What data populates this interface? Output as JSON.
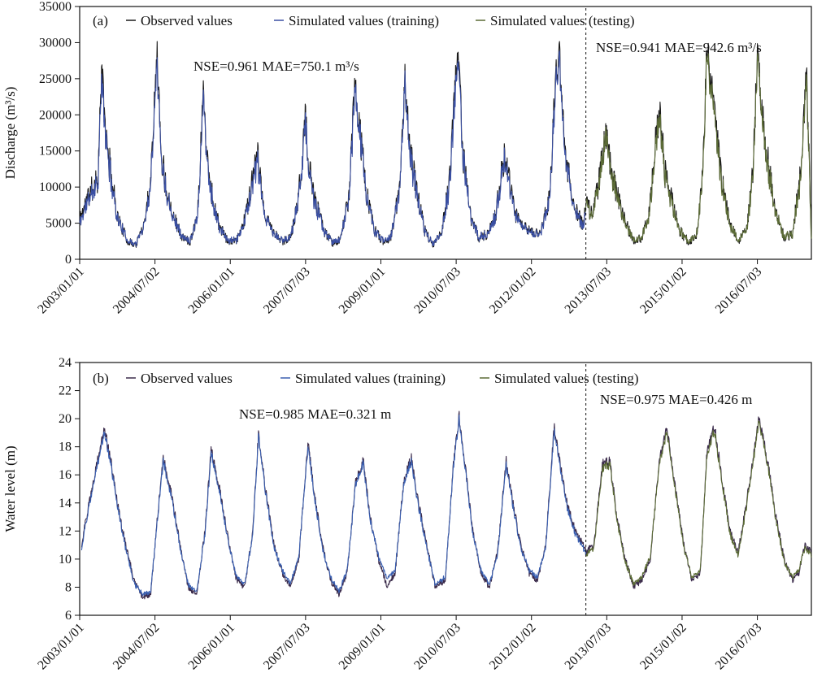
{
  "chart_data": [
    {
      "type": "line",
      "panel_label": "(a)",
      "ylabel": "Discharge (m³/s)",
      "ylim": [
        0,
        35000
      ],
      "y_ticks": [
        "0",
        "5000",
        "10000",
        "15000",
        "20000",
        "25000",
        "30000",
        "35000"
      ],
      "x_tick_labels": [
        "2003/01/01",
        "2004/07/02",
        "2006/01/01",
        "2007/07/03",
        "2009/01/01",
        "2010/07/03",
        "2012/01/02",
        "2013/07/03",
        "2015/01/02",
        "2016/07/03"
      ],
      "x_range": [
        "2003/01/01",
        "2017/07/31"
      ],
      "split_date": "2013/02/01",
      "legend": [
        "Observed values",
        "Simulated values (training)",
        "Simulated values (testing)"
      ],
      "annotations": {
        "training_stats": "NSE=0.961 MAE=750.1  m³/s",
        "testing_stats": "NSE=0.941 MAE=942.6 m³/s"
      },
      "colors": {
        "observed": "#1a1a1a",
        "training": "#3a4fa3",
        "testing": "#5b6b36"
      },
      "series": [
        {
          "name": "Observed values",
          "role": "observed"
        },
        {
          "name": "Simulated values (training)",
          "role": "training"
        },
        {
          "name": "Simulated values (testing)",
          "role": "testing"
        }
      ],
      "keypoints": {
        "x": [
          "2003/01/01",
          "2003/03/01",
          "2003/05/15",
          "2003/06/10",
          "2003/07/10",
          "2003/08/15",
          "2003/10/01",
          "2003/12/15",
          "2004/02/15",
          "2004/04/15",
          "2004/06/01",
          "2004/07/15",
          "2004/08/15",
          "2004/09/20",
          "2004/11/15",
          "2005/01/15",
          "2005/03/15",
          "2005/05/10",
          "2005/06/20",
          "2005/07/15",
          "2005/09/01",
          "2005/10/15",
          "2005/12/15",
          "2006/02/15",
          "2006/04/15",
          "2006/06/15",
          "2006/07/20",
          "2006/09/01",
          "2006/11/15",
          "2007/01/15",
          "2007/03/15",
          "2007/05/10",
          "2007/07/01",
          "2007/07/25",
          "2007/09/01",
          "2007/11/15",
          "2008/01/15",
          "2008/03/15",
          "2008/05/15",
          "2008/06/25",
          "2008/08/10",
          "2008/09/20",
          "2008/11/15",
          "2009/01/15",
          "2009/03/15",
          "2009/05/15",
          "2009/06/25",
          "2009/08/05",
          "2009/09/20",
          "2009/11/15",
          "2010/01/15",
          "2010/03/15",
          "2010/05/15",
          "2010/07/10",
          "2010/07/25",
          "2010/08/20",
          "2010/10/15",
          "2010/12/15",
          "2011/02/15",
          "2011/04/15",
          "2011/06/15",
          "2011/07/20",
          "2011/09/01",
          "2011/11/15",
          "2012/01/15",
          "2012/03/15",
          "2012/05/15",
          "2012/06/25",
          "2012/07/25",
          "2012/09/01",
          "2012/11/15",
          "2013/01/15",
          "2013/02/01",
          "2013/03/15",
          "2013/05/15",
          "2013/06/25",
          "2013/08/01",
          "2013/09/15",
          "2013/11/15",
          "2014/01/15",
          "2014/03/15",
          "2014/05/10",
          "2014/06/20",
          "2014/07/20",
          "2014/09/01",
          "2014/10/20",
          "2014/12/15",
          "2015/02/15",
          "2015/04/15",
          "2015/06/01",
          "2015/07/01",
          "2015/08/15",
          "2015/10/15",
          "2015/12/15",
          "2016/02/15",
          "2016/04/15",
          "2016/06/01",
          "2016/07/05",
          "2016/08/10",
          "2016/09/20",
          "2016/11/20",
          "2017/01/15",
          "2017/03/15",
          "2017/05/15",
          "2017/06/25",
          "2017/07/31"
        ],
        "observed": [
          5500,
          8500,
          11500,
          26500,
          17000,
          12000,
          6000,
          2500,
          2000,
          5000,
          11000,
          29500,
          15000,
          10000,
          6000,
          3000,
          2500,
          6500,
          24000,
          14000,
          7500,
          4500,
          2500,
          2500,
          5500,
          11000,
          14000,
          6500,
          3500,
          2500,
          3000,
          8000,
          19500,
          13000,
          8500,
          4000,
          2200,
          2800,
          9000,
          24000,
          16000,
          9000,
          4000,
          2500,
          3000,
          9500,
          25000,
          14000,
          9500,
          4000,
          2000,
          3500,
          10500,
          28500,
          26000,
          15000,
          6000,
          3000,
          3500,
          6000,
          14000,
          11000,
          6500,
          4500,
          3500,
          4000,
          9000,
          25000,
          28000,
          14000,
          7000,
          4500,
          8500,
          6000,
          11500,
          17500,
          13000,
          9000,
          5000,
          2500,
          3000,
          6500,
          16000,
          20500,
          12000,
          8000,
          4000,
          2500,
          3000,
          11000,
          29500,
          22000,
          11000,
          5000,
          2500,
          4000,
          12000,
          29000,
          19500,
          13000,
          6000,
          3000,
          3500,
          12000,
          26000,
          2500
        ],
        "simulated": [
          5000,
          8000,
          11000,
          25000,
          16500,
          11500,
          5800,
          2600,
          2100,
          4800,
          10500,
          28000,
          14500,
          9500,
          5800,
          3100,
          2600,
          6200,
          23000,
          13500,
          7200,
          4300,
          2600,
          2600,
          5300,
          10500,
          13500,
          6300,
          3400,
          2600,
          3100,
          7700,
          19000,
          12500,
          8200,
          3900,
          2300,
          2900,
          8700,
          23500,
          15500,
          8700,
          3900,
          2600,
          3100,
          9200,
          24500,
          13500,
          9200,
          3900,
          2100,
          3400,
          10000,
          27500,
          25000,
          14500,
          5800,
          3100,
          3400,
          5800,
          13500,
          10500,
          6300,
          4300,
          3400,
          3900,
          8700,
          24000,
          27000,
          13500,
          6800,
          4300,
          8000,
          5800,
          11000,
          17000,
          12500,
          8700,
          4800,
          2600,
          3100,
          6200,
          15500,
          20000,
          11500,
          7700,
          3900,
          2600,
          3100,
          10500,
          28500,
          21000,
          10500,
          4800,
          2600,
          3900,
          11500,
          28000,
          19000,
          12500,
          5800,
          3100,
          3400,
          11500,
          25000,
          2600
        ]
      }
    },
    {
      "type": "line",
      "panel_label": "(b)",
      "ylabel": "Water level (m)",
      "ylim": [
        6,
        24
      ],
      "y_ticks": [
        "6",
        "8",
        "10",
        "12",
        "14",
        "16",
        "18",
        "20",
        "22",
        "24"
      ],
      "x_tick_labels": [
        "2003/01/01",
        "2004/07/02",
        "2006/01/01",
        "2007/07/03",
        "2009/01/01",
        "2010/07/03",
        "2012/01/02",
        "2013/07/03",
        "2015/01/02",
        "2016/07/03"
      ],
      "x_range": [
        "2003/01/01",
        "2017/07/31"
      ],
      "split_date": "2013/02/01",
      "legend": [
        "Observed values",
        "Simulated values (training)",
        "Simulated values (testing)"
      ],
      "annotations": {
        "training_stats": "NSE=0.985 MAE=0.321 m",
        "testing_stats": "NSE=0.975 MAE=0.426 m"
      },
      "colors": {
        "observed": "#3a2a4a",
        "training": "#3a5fb0",
        "testing": "#5b6b36"
      },
      "series": [
        {
          "name": "Observed values",
          "role": "observed"
        },
        {
          "name": "Simulated values (training)",
          "role": "training"
        },
        {
          "name": "Simulated values (testing)",
          "role": "testing"
        }
      ],
      "keypoints": {
        "x": [
          "2003/01/15",
          "2003/03/01",
          "2003/05/01",
          "2003/07/01",
          "2003/08/15",
          "2003/10/01",
          "2003/12/01",
          "2004/02/01",
          "2004/04/01",
          "2004/06/01",
          "2004/07/20",
          "2004/09/01",
          "2004/11/01",
          "2005/01/01",
          "2005/03/01",
          "2005/05/01",
          "2005/07/01",
          "2005/08/15",
          "2005/10/15",
          "2005/12/15",
          "2006/02/15",
          "2006/04/15",
          "2006/06/15",
          "2006/07/25",
          "2006/09/15",
          "2006/11/15",
          "2007/01/15",
          "2007/03/15",
          "2007/05/15",
          "2007/07/20",
          "2007/09/01",
          "2007/11/01",
          "2008/01/01",
          "2008/03/01",
          "2008/05/01",
          "2008/07/01",
          "2008/08/25",
          "2008/10/15",
          "2008/12/15",
          "2009/02/15",
          "2009/04/15",
          "2009/06/15",
          "2009/08/10",
          "2009/10/01",
          "2009/12/01",
          "2010/02/01",
          "2010/04/15",
          "2010/06/15",
          "2010/07/25",
          "2010/09/01",
          "2010/11/01",
          "2011/01/01",
          "2011/03/01",
          "2011/05/01",
          "2011/07/01",
          "2011/08/20",
          "2011/10/15",
          "2011/12/15",
          "2012/02/15",
          "2012/04/15",
          "2012/06/15",
          "2012/07/25",
          "2012/09/15",
          "2012/11/15",
          "2013/01/15",
          "2013/02/01",
          "2013/04/01",
          "2013/06/01",
          "2013/07/25",
          "2013/09/15",
          "2013/11/15",
          "2014/01/15",
          "2014/03/15",
          "2014/05/15",
          "2014/07/20",
          "2014/09/15",
          "2014/11/15",
          "2015/01/15",
          "2015/03/15",
          "2015/05/15",
          "2015/07/01",
          "2015/08/25",
          "2015/10/15",
          "2015/12/15",
          "2016/02/15",
          "2016/04/15",
          "2016/06/15",
          "2016/07/15",
          "2016/09/15",
          "2016/11/15",
          "2017/01/15",
          "2017/03/15",
          "2017/05/01",
          "2017/06/15",
          "2017/07/31"
        ],
        "observed": [
          11,
          13.5,
          16.5,
          19.3,
          17,
          14,
          11,
          8.5,
          7.3,
          7.5,
          13,
          17.2,
          14.5,
          11,
          8,
          7.5,
          12,
          17.8,
          15,
          11.5,
          8.5,
          8,
          12,
          19,
          15,
          11,
          9,
          8,
          10,
          18.3,
          15,
          11,
          8.5,
          7.5,
          9,
          15.5,
          17,
          13,
          10,
          8,
          9,
          15.5,
          17.2,
          14,
          11,
          8,
          8.5,
          17,
          20.2,
          17,
          12,
          9,
          8,
          10.5,
          17,
          14,
          11,
          9,
          8.5,
          11,
          19.5,
          17,
          14,
          12,
          11,
          10.5,
          11,
          16.8,
          17,
          13,
          10,
          8,
          8.5,
          10,
          17,
          19.3,
          15,
          11,
          8.5,
          9,
          17.5,
          19.5,
          16,
          12,
          10.5,
          14,
          18,
          20,
          17,
          13,
          10,
          8.5,
          9,
          11,
          10.5
        ],
        "simulated": [
          10.8,
          13.3,
          16.3,
          19,
          16.8,
          13.8,
          10.8,
          8.3,
          7.5,
          7.7,
          12.8,
          17,
          14.3,
          10.8,
          8.2,
          7.7,
          11.8,
          17.5,
          14.8,
          11.3,
          8.7,
          8.2,
          11.8,
          18.8,
          14.8,
          10.8,
          9.2,
          8.2,
          10.2,
          18,
          14.8,
          10.8,
          8.7,
          7.7,
          9.2,
          15.3,
          16.8,
          12.8,
          10.2,
          8.6,
          9.2,
          15.3,
          17,
          13.8,
          10.8,
          8.2,
          8.7,
          16.8,
          20,
          16.8,
          11.8,
          9.2,
          8.2,
          10.3,
          16.8,
          13.8,
          10.8,
          9.2,
          8.7,
          10.8,
          19.2,
          16.8,
          13.8,
          11.8,
          10.8,
          10.3,
          10.8,
          16.5,
          16.8,
          12.8,
          9.8,
          8.2,
          8.7,
          10.2,
          16.8,
          19,
          14.8,
          10.8,
          8.7,
          9.2,
          17.2,
          19.2,
          15.8,
          11.8,
          10.3,
          13.8,
          17.8,
          19.8,
          16.8,
          12.8,
          9.8,
          8.7,
          9.2,
          10.8,
          10.3
        ]
      }
    }
  ]
}
